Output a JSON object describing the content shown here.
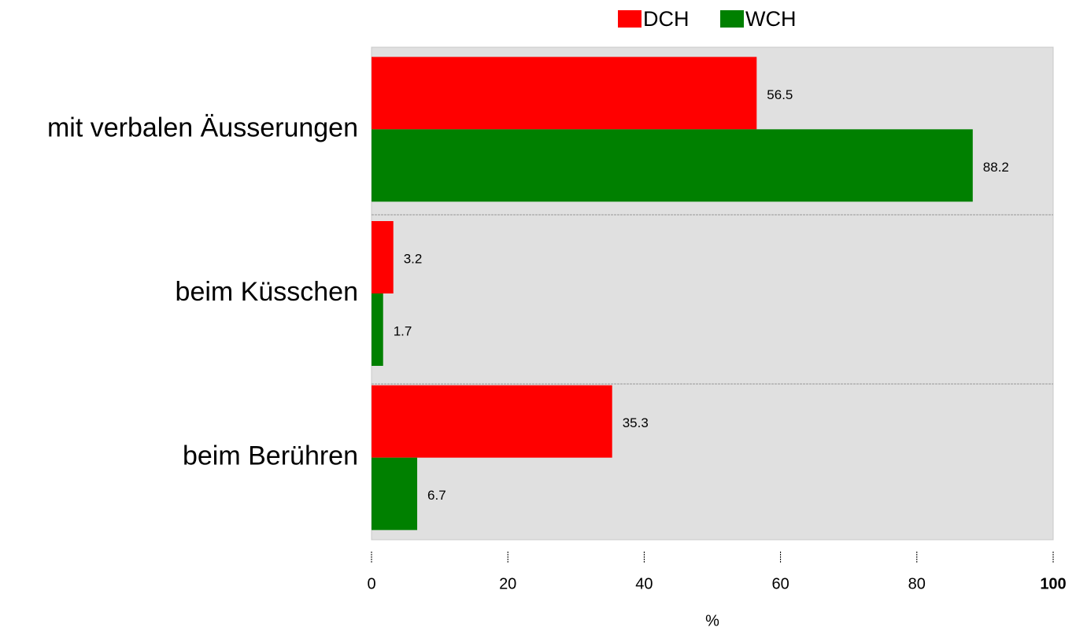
{
  "chart_data": {
    "type": "barh",
    "categories": [
      "mit verbalen Äusserungen",
      "beim Küsschen",
      "beim Berühren"
    ],
    "series": [
      {
        "name": "DCH",
        "color": "#ff0000",
        "values": [
          56.5,
          3.2,
          35.3
        ]
      },
      {
        "name": "WCH",
        "color": "#008000",
        "values": [
          88.2,
          1.7,
          6.7
        ]
      }
    ],
    "xlim": [
      0,
      100
    ],
    "xticks": [
      0,
      20,
      40,
      60,
      80,
      100
    ],
    "xlabel": "%",
    "legend": "top"
  }
}
